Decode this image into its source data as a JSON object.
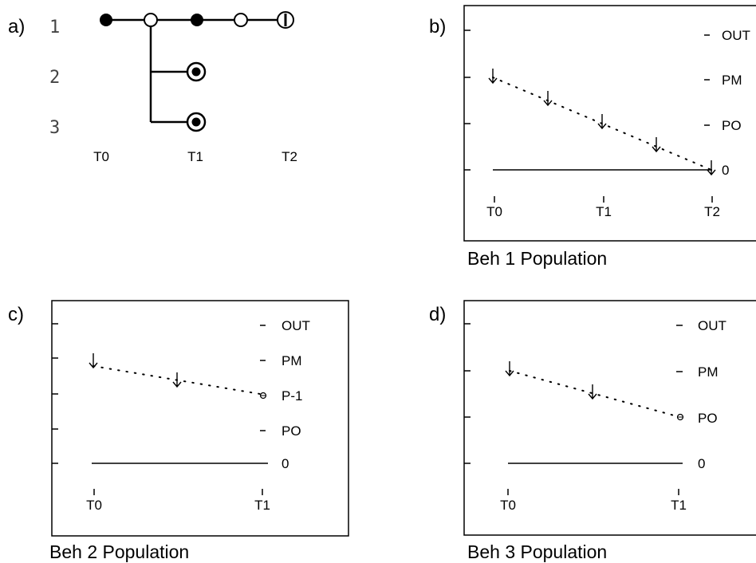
{
  "panel_a": {
    "label": "a)",
    "rows": [
      "1",
      "2",
      "3"
    ],
    "times": [
      "T0",
      "T1",
      "T2"
    ]
  },
  "panel_b": {
    "label": "b)",
    "levels": [
      "OUT",
      "PM",
      "PO",
      "0"
    ],
    "times": [
      "T0",
      "T1",
      "T2"
    ],
    "caption": "Beh 1  Population"
  },
  "panel_c": {
    "label": "c)",
    "levels": [
      "OUT",
      "PM",
      "P-1",
      "PO",
      "0"
    ],
    "times": [
      "T0",
      "T1"
    ],
    "caption": "Beh 2 Population"
  },
  "panel_d": {
    "label": "d)",
    "levels": [
      "OUT",
      "PM",
      "PO",
      "0"
    ],
    "times": [
      "T0",
      "T1"
    ],
    "caption": "Beh 3  Population"
  },
  "colors": {
    "stroke": "#000000",
    "background": "#ffffff"
  }
}
